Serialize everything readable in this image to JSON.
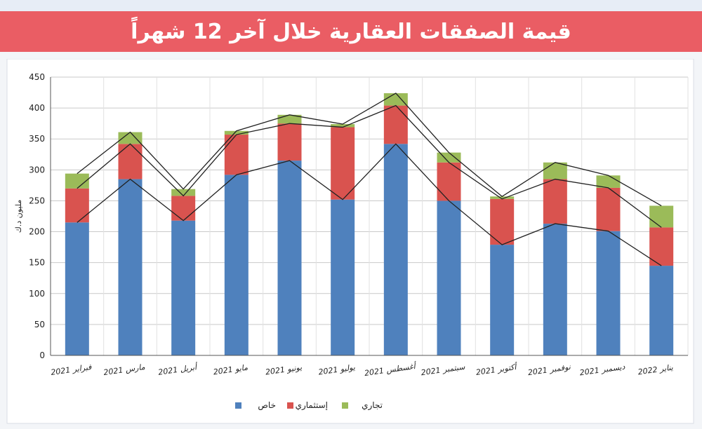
{
  "title": "قيمة الصفقات العقارية خلال آخر 12 شهراً",
  "chart_data": {
    "type": "bar",
    "stacked": true,
    "ylabel": "مليون د.ك",
    "ylim": [
      0,
      450
    ],
    "yticks": [
      0,
      50,
      100,
      150,
      200,
      250,
      300,
      350,
      400,
      450
    ],
    "grid": true,
    "legend_position": "bottom",
    "categories": [
      "فبراير 2021",
      "مارس 2021",
      "أبريل 2021",
      "مايو 2021",
      "يونيو 2021",
      "يوليو 2021",
      "أغسطس 2021",
      "سبتمبر 2021",
      "أكتوبر 2021",
      "نوفمبر 2021",
      "ديسمبر 2021",
      "يناير 2022"
    ],
    "series": [
      {
        "name": "خاص",
        "color": "#4f81bd",
        "values": [
          215,
          285,
          218,
          292,
          315,
          252,
          342,
          250,
          179,
          213,
          201,
          145
        ]
      },
      {
        "name": "إستثماري",
        "color": "#d9534f",
        "values": [
          55,
          57,
          40,
          65,
          60,
          117,
          62,
          62,
          74,
          72,
          70,
          62
        ]
      },
      {
        "name": "تجاري",
        "color": "#9bbb59",
        "values": [
          24,
          19,
          11,
          6,
          14,
          5,
          20,
          16,
          4,
          27,
          20,
          35
        ]
      }
    ]
  }
}
